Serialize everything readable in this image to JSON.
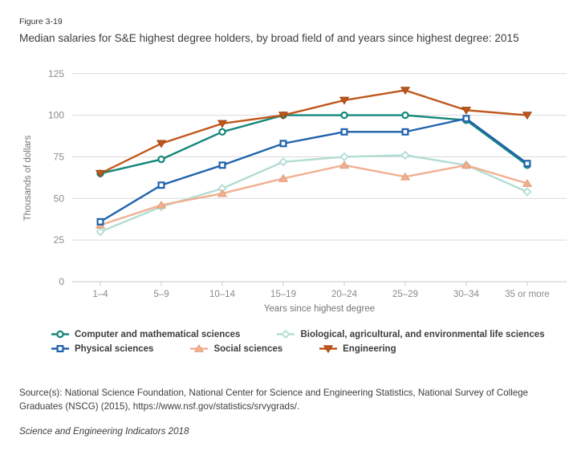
{
  "figure_label": "Figure 3-19",
  "title": "Median salaries for S&E highest degree holders, by broad field of and years since highest degree: 2015",
  "chart_data": {
    "type": "line",
    "categories": [
      "1–4",
      "5–9",
      "10–14",
      "15–19",
      "20–24",
      "25–29",
      "30–34",
      "35 or more"
    ],
    "xlabel": "Years since highest degree",
    "ylabel": "Thousands of dollars",
    "ylim": [
      0,
      125
    ],
    "yticks": [
      0,
      25,
      50,
      75,
      100,
      125
    ],
    "grid": true,
    "legend_position": "bottom",
    "series": [
      {
        "id": "computer-math",
        "name": "Computer and mathematical sciences",
        "color": "#14867b",
        "marker": "circle",
        "marker_fill": "open",
        "values": [
          65,
          73.5,
          90,
          100,
          100,
          100,
          97,
          70
        ]
      },
      {
        "id": "bio-ag-env",
        "name": "Biological, agricultural, and environmental life sciences",
        "color": "#b2ddd4",
        "marker": "diamond",
        "marker_fill": "open",
        "values": [
          30,
          45,
          56,
          72,
          75,
          76,
          70,
          54
        ]
      },
      {
        "id": "physical",
        "name": "Physical sciences",
        "color": "#2063ac",
        "marker": "square",
        "marker_fill": "open",
        "values": [
          36,
          58,
          70,
          83,
          90,
          90,
          98,
          71
        ]
      },
      {
        "id": "social",
        "name": "Social sciences",
        "color": "#f1b090",
        "marker": "triangle-up",
        "marker_fill": "solid",
        "marker_stroke": "#e09a74",
        "values": [
          34,
          46,
          53,
          62,
          70,
          63,
          70,
          59
        ]
      },
      {
        "id": "engineering",
        "name": "Engineering",
        "color": "#c0571c",
        "marker": "triangle-down",
        "marker_fill": "solid",
        "marker_stroke": "#9c4412",
        "values": [
          65,
          83,
          95,
          100,
          109,
          115,
          103,
          100
        ]
      }
    ],
    "style_colors": {
      "gridline": "#d9d9d9",
      "axis_line": "#c8c8c8",
      "tick_label": "#8b8b8b",
      "axis_title": "#757575"
    }
  },
  "source_text": "Source(s): National Science Foundation, National Center for Science and Engineering Statistics, National Survey of College Graduates (NSCG) (2015), https://www.nsf.gov/statistics/srvygrads/.",
  "footer": "Science and Engineering Indicators 2018"
}
